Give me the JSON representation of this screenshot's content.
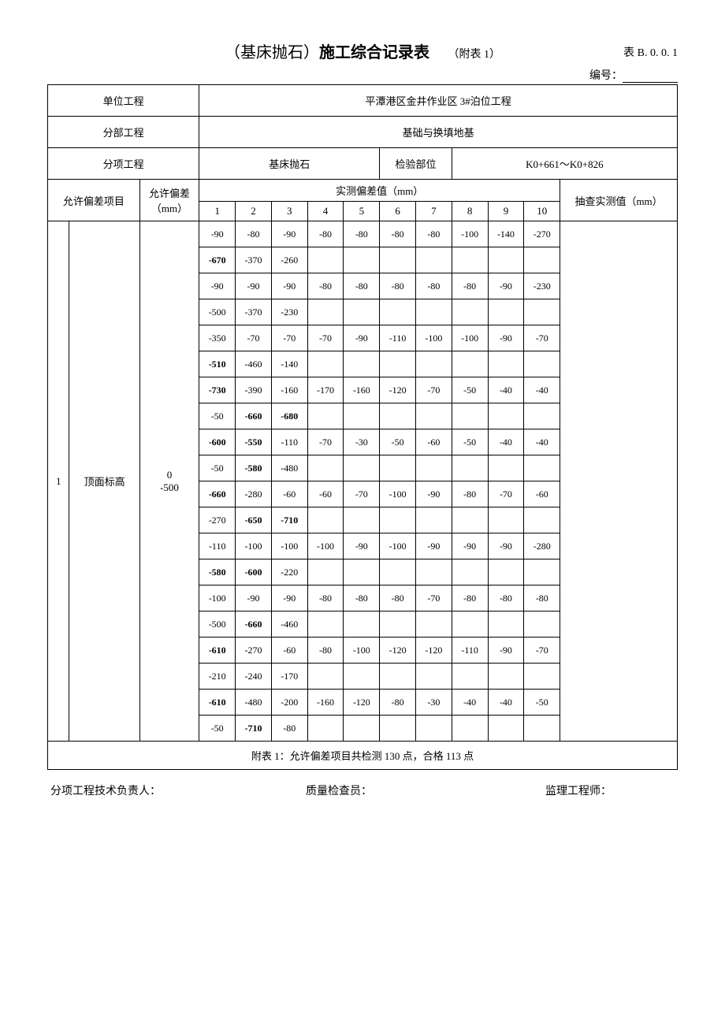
{
  "title": {
    "paren_text": "（基床抛石）",
    "main_text": "施工综合记录表",
    "attach_text": "（附表 1）",
    "table_code": "表 B. 0. 0. 1"
  },
  "serial_label": "编号：",
  "header": {
    "unit_label": "单位工程",
    "unit_value": "平潭港区金井作业区 3#泊位工程",
    "div_label": "分部工程",
    "div_value": "基础与换填地基",
    "sub_label": "分项工程",
    "sub_value": "基床抛石",
    "inspect_pos_label": "检验部位",
    "inspect_pos_value": "K0+661～K0+826",
    "tol_item_label": "允许偏差项目",
    "tol_value_label": "允许偏差（mm）",
    "measured_label": "实测偏差值（mm）",
    "spot_label": "抽查实测值（mm）",
    "col_nums": [
      "1",
      "2",
      "3",
      "4",
      "5",
      "6",
      "7",
      "8",
      "9",
      "10"
    ]
  },
  "item": {
    "index": "1",
    "name": "顶面标高",
    "tolerance_top": "0",
    "tolerance_bot": "-500"
  },
  "rows": [
    [
      "-90",
      "-80",
      "-90",
      "-80",
      "-80",
      "-80",
      "-80",
      "-100",
      "-140",
      "-270"
    ],
    [
      "-670",
      "-370",
      "-260",
      "",
      "",
      "",
      "",
      "",
      "",
      ""
    ],
    [
      "-90",
      "-90",
      "-90",
      "-80",
      "-80",
      "-80",
      "-80",
      "-80",
      "-90",
      "-230"
    ],
    [
      "-500",
      "-370",
      "-230",
      "",
      "",
      "",
      "",
      "",
      "",
      ""
    ],
    [
      "-350",
      "-70",
      "-70",
      "-70",
      "-90",
      "-110",
      "-100",
      "-100",
      "-90",
      "-70"
    ],
    [
      "-510",
      "-460",
      "-140",
      "",
      "",
      "",
      "",
      "",
      "",
      ""
    ],
    [
      "-730",
      "-390",
      "-160",
      "-170",
      "-160",
      "-120",
      "-70",
      "-50",
      "-40",
      "-40"
    ],
    [
      "-50",
      "-660",
      "-680",
      "",
      "",
      "",
      "",
      "",
      "",
      ""
    ],
    [
      "-600",
      "-550",
      "-110",
      "-70",
      "-30",
      "-50",
      "-60",
      "-50",
      "-40",
      "-40"
    ],
    [
      "-50",
      "-580",
      "-480",
      "",
      "",
      "",
      "",
      "",
      "",
      ""
    ],
    [
      "-660",
      "-280",
      "-60",
      "-60",
      "-70",
      "-100",
      "-90",
      "-80",
      "-70",
      "-60"
    ],
    [
      "-270",
      "-650",
      "-710",
      "",
      "",
      "",
      "",
      "",
      "",
      ""
    ],
    [
      "-110",
      "-100",
      "-100",
      "-100",
      "-90",
      "-100",
      "-90",
      "-90",
      "-90",
      "-280"
    ],
    [
      "-580",
      "-600",
      "-220",
      "",
      "",
      "",
      "",
      "",
      "",
      ""
    ],
    [
      "-100",
      "-90",
      "-90",
      "-80",
      "-80",
      "-80",
      "-70",
      "-80",
      "-80",
      "-80"
    ],
    [
      "-500",
      "-660",
      "-460",
      "",
      "",
      "",
      "",
      "",
      "",
      ""
    ],
    [
      "-610",
      "-270",
      "-60",
      "-80",
      "-100",
      "-120",
      "-120",
      "-110",
      "-90",
      "-70"
    ],
    [
      "-210",
      "-240",
      "-170",
      "",
      "",
      "",
      "",
      "",
      "",
      ""
    ],
    [
      "-610",
      "-480",
      "-200",
      "-160",
      "-120",
      "-80",
      "-30",
      "-40",
      "-40",
      "-50"
    ],
    [
      "-50",
      "-710",
      "-80",
      "",
      "",
      "",
      "",
      "",
      "",
      ""
    ]
  ],
  "summary": "附表 1：允许偏差项目共检测 130 点，合格 113 点",
  "signatures": {
    "tech": "分项工程技术负责人：",
    "qc": "质量检查员：",
    "supervisor": "监理工程师："
  },
  "style": {
    "bold_threshold": -500
  }
}
